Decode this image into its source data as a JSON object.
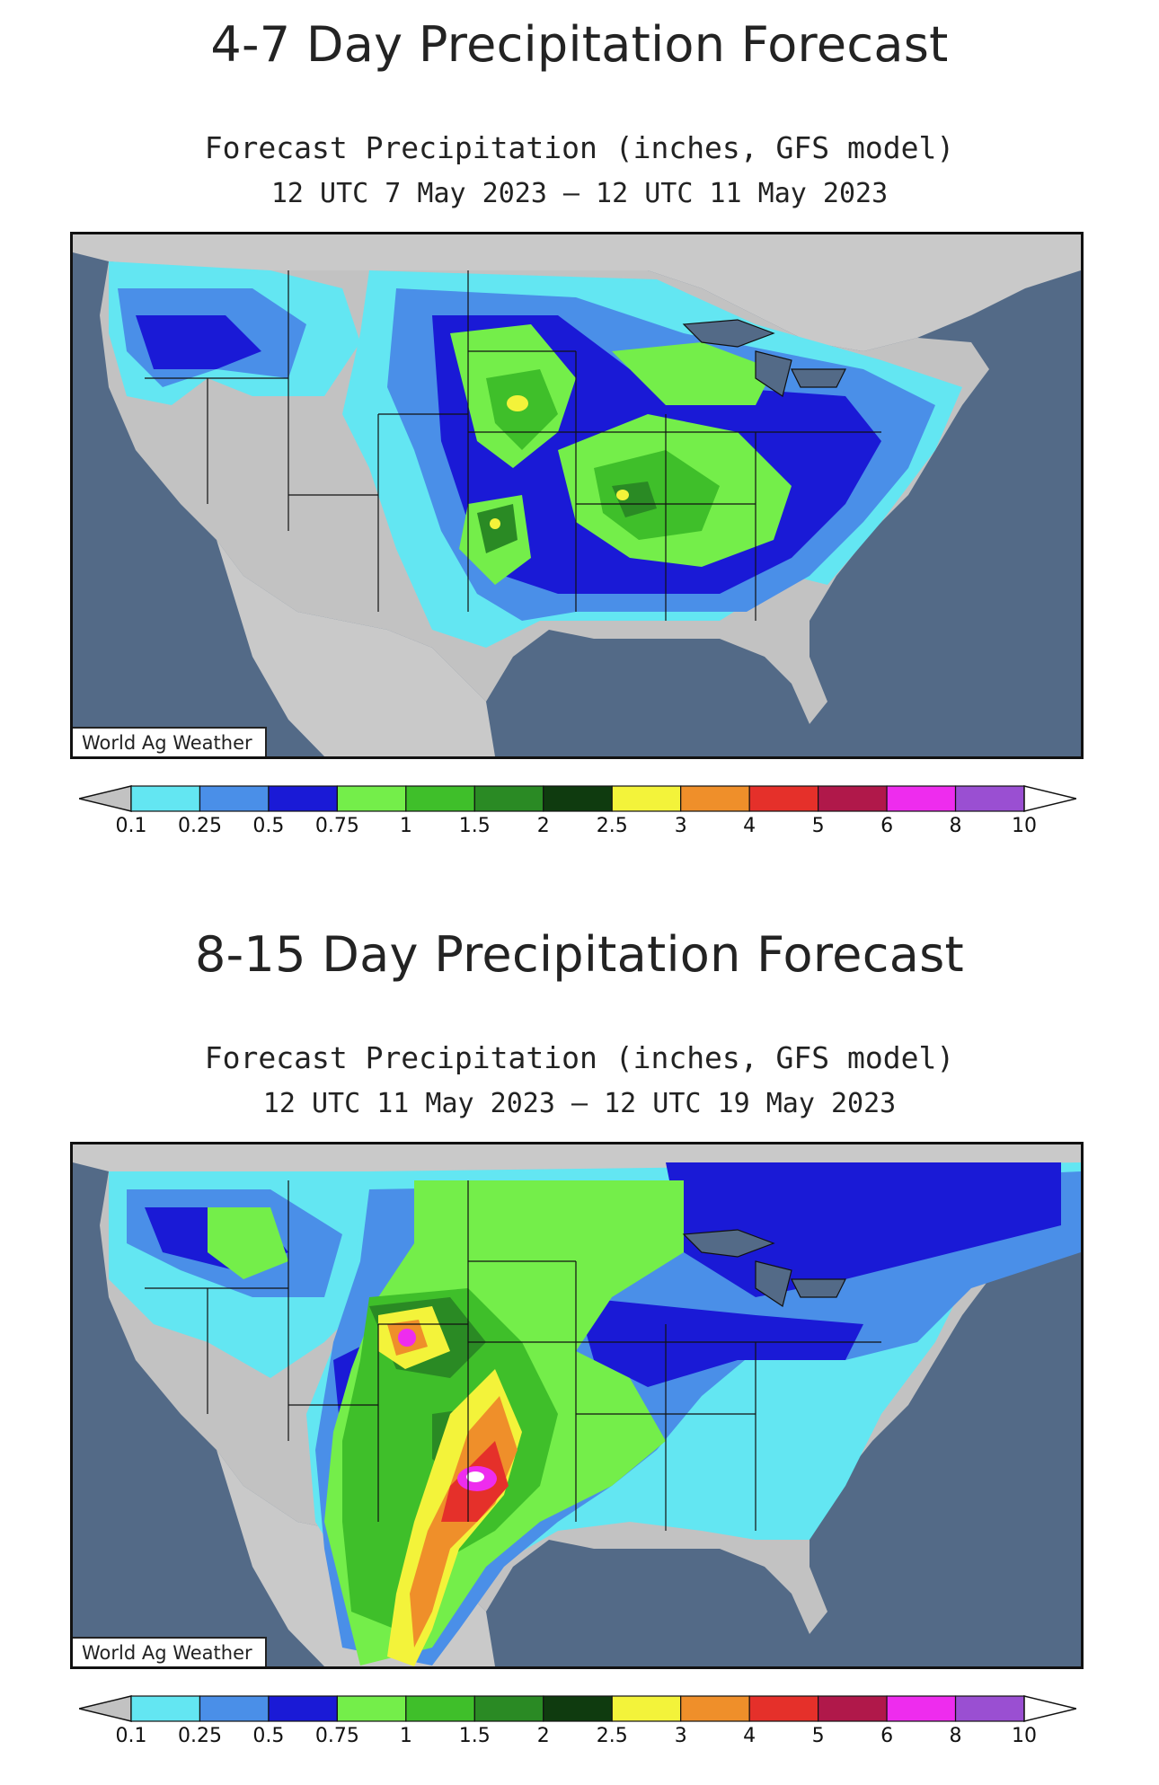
{
  "panels": [
    {
      "heading": "4-7 Day Precipitation Forecast",
      "subtitle": "Forecast Precipitation (inches, GFS model)",
      "period": "12 UTC 7 May 2023 – 12 UTC 11 May 2023",
      "credit": "World Ag Weather"
    },
    {
      "heading": "8-15 Day Precipitation Forecast",
      "subtitle": "Forecast Precipitation (inches, GFS model)",
      "period": "12 UTC 11 May 2023 – 12 UTC 19 May 2023",
      "credit": "World Ag Weather"
    }
  ],
  "legend": {
    "labels": [
      "0.1",
      "0.25",
      "0.5",
      "0.75",
      "1",
      "1.5",
      "2",
      "2.5",
      "3",
      "4",
      "5",
      "6",
      "8",
      "10"
    ],
    "colors": [
      "#c2c2c2",
      "#63e6f2",
      "#4a8fe8",
      "#1a1ad6",
      "#74ee4a",
      "#3fbf2a",
      "#2a8a24",
      "#0f3b0f",
      "#f3f33a",
      "#ef8f2a",
      "#e5302a",
      "#b0184a",
      "#ee2cee",
      "#9a4fd2",
      "#ffffff"
    ]
  },
  "map_colors": {
    "ocean": "#536a87",
    "land": "#c2c2c2",
    "canada_mexico": "#c9c9c9"
  }
}
